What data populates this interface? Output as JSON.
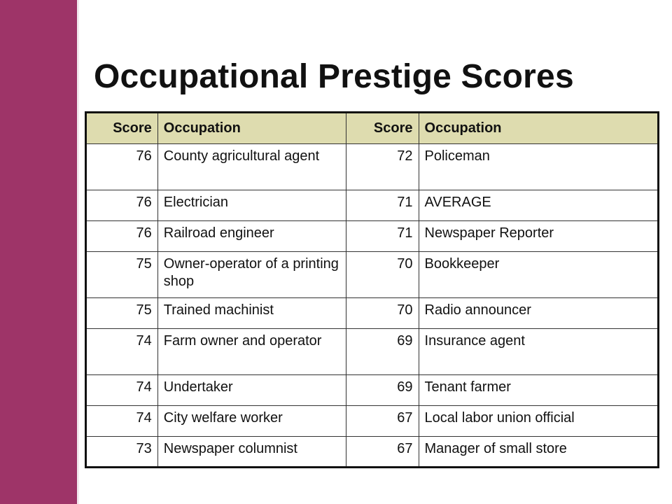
{
  "slide": {
    "title": "Occupational Prestige Scores",
    "accent_color": "#9e3468",
    "header_fill": "#dedcaf"
  },
  "table": {
    "headers": [
      "Score",
      "Occupation",
      "Score",
      "Occupation"
    ],
    "rows": [
      {
        "score1": "76",
        "occupation1": "County agricultural agent",
        "score2": "72",
        "occupation2": "Policeman"
      },
      {
        "score1": "76",
        "occupation1": "Electrician",
        "score2": "71",
        "occupation2": "AVERAGE"
      },
      {
        "score1": "76",
        "occupation1": "Railroad engineer",
        "score2": "71",
        "occupation2": "Newspaper Reporter"
      },
      {
        "score1": "75",
        "occupation1": "Owner-operator of a printing shop",
        "score2": "70",
        "occupation2": "Bookkeeper"
      },
      {
        "score1": "75",
        "occupation1": "Trained machinist",
        "score2": "70",
        "occupation2": "Radio announcer"
      },
      {
        "score1": "74",
        "occupation1": "Farm owner and operator",
        "score2": "69",
        "occupation2": "Insurance agent"
      },
      {
        "score1": "74",
        "occupation1": "Undertaker",
        "score2": "69",
        "occupation2": "Tenant farmer"
      },
      {
        "score1": "74",
        "occupation1": "City welfare worker",
        "score2": "67",
        "occupation2": "Local labor union official"
      },
      {
        "score1": "73",
        "occupation1": "Newspaper columnist",
        "score2": "67",
        "occupation2": "Manager of small store"
      }
    ]
  }
}
